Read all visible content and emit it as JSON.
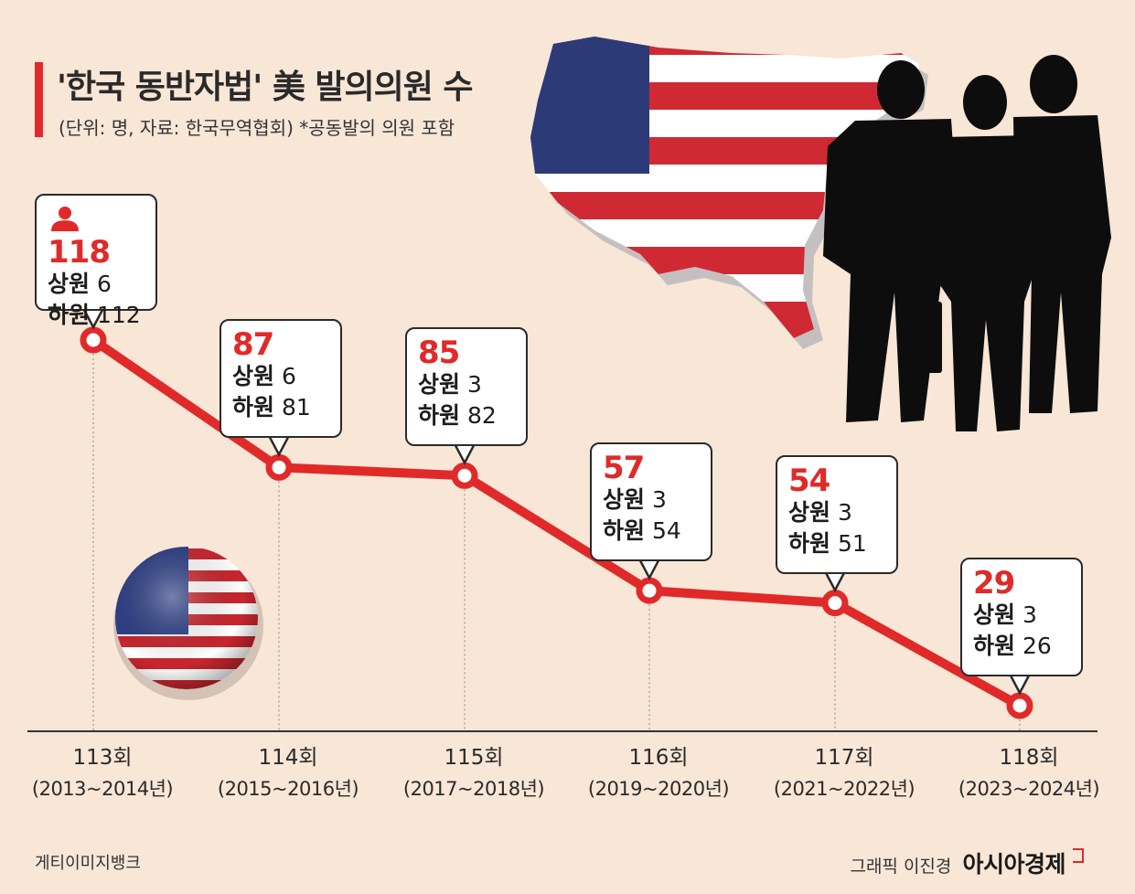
{
  "header": {
    "title": "'한국 동반자법' 美 발의의원 수",
    "subtitle": "(단위: 명, 자료: 한국무역협회)  *공동발의 의원 포함"
  },
  "credits": {
    "image_source": "게티이미지뱅크",
    "graphic": "그래픽 이진경",
    "brand": "아시아경제"
  },
  "colors": {
    "accent": "#e02a2a",
    "background": "#f8e6d7"
  },
  "icons": [
    "person-icon",
    "usa-map-flag",
    "flag-ball",
    "businessmen-silhouette"
  ],
  "chart_data": {
    "type": "line",
    "categories": [
      "113회",
      "114회",
      "115회",
      "116회",
      "117회",
      "118회"
    ],
    "category_years": [
      "(2013~2014년)",
      "(2015~2016년)",
      "(2017~2018년)",
      "(2019~2020년)",
      "(2021~2022년)",
      "(2023~2024년)"
    ],
    "values": [
      118,
      87,
      85,
      57,
      54,
      29
    ],
    "breakdown": [
      {
        "senate_label": "상원",
        "senate": 6,
        "house_label": "하원",
        "house": 112
      },
      {
        "senate_label": "상원",
        "senate": 6,
        "house_label": "하원",
        "house": 81
      },
      {
        "senate_label": "상원",
        "senate": 3,
        "house_label": "하원",
        "house": 82
      },
      {
        "senate_label": "상원",
        "senate": 3,
        "house_label": "하원",
        "house": 54
      },
      {
        "senate_label": "상원",
        "senate": 3,
        "house_label": "하원",
        "house": 51
      },
      {
        "senate_label": "상원",
        "senate": 3,
        "house_label": "하원",
        "house": 26
      }
    ],
    "ylim": [
      29,
      118
    ],
    "grid": false,
    "line_color": "#e02a2a"
  }
}
